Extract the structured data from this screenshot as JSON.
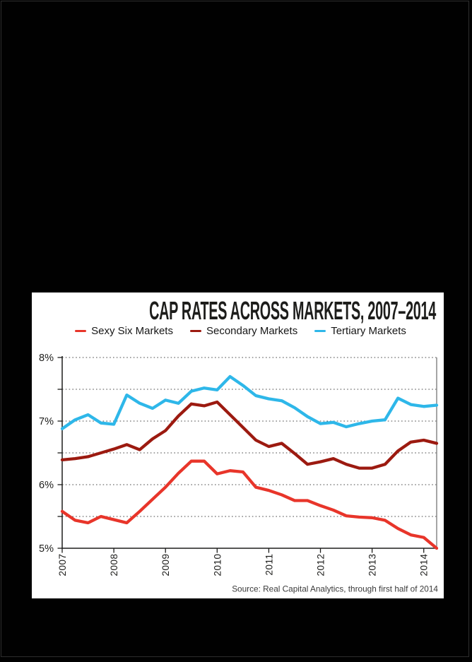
{
  "canvas": {
    "background": "#010101",
    "frame_border_color": "#2d2d2d",
    "card_background": "#ffffff"
  },
  "chart_data": {
    "type": "line",
    "title": "CAP RATES ACROSS MARKETS, 2007–2014",
    "source_note": "Source: Real Capital Analytics, through first half of 2014",
    "legend_position": "top",
    "grid": "dotted horizontal lines every 0.5%",
    "ylim": [
      5,
      8
    ],
    "y_unit": "%",
    "y_gridline_values": [
      8,
      7.5,
      7,
      6.5,
      6,
      5.5
    ],
    "y_tick_values": [
      8,
      7.5,
      7,
      6.5,
      6,
      5.5,
      5
    ],
    "y_label_values": [
      8,
      7,
      6,
      5
    ],
    "y_tick_labels": [
      "8%",
      "7%",
      "6%",
      "5%"
    ],
    "x_tick_labels": [
      "2007",
      "2008",
      "2009",
      "2010",
      "2011",
      "2012",
      "2013",
      "2014"
    ],
    "x": [
      2007,
      2007.25,
      2007.5,
      2007.75,
      2008,
      2008.25,
      2008.5,
      2008.75,
      2009,
      2009.25,
      2009.5,
      2009.75,
      2010,
      2010.25,
      2010.5,
      2010.75,
      2011,
      2011.25,
      2011.5,
      2011.75,
      2012,
      2012.25,
      2012.5,
      2012.75,
      2013,
      2013.25,
      2013.5,
      2013.75,
      2014,
      2014.25
    ],
    "series": [
      {
        "name": "Sexy Six Markets",
        "color": "#e8352a",
        "values": [
          5.58,
          5.44,
          5.4,
          5.5,
          5.45,
          5.4,
          5.58,
          5.77,
          5.96,
          6.18,
          6.37,
          6.37,
          6.17,
          6.22,
          6.2,
          5.96,
          5.91,
          5.84,
          5.75,
          5.75,
          5.67,
          5.6,
          5.51,
          5.49,
          5.48,
          5.44,
          5.31,
          5.21,
          5.17,
          5.0
        ]
      },
      {
        "name": "Secondary Markets",
        "color": "#9c1a10",
        "values": [
          6.39,
          6.41,
          6.44,
          6.5,
          6.56,
          6.63,
          6.55,
          6.72,
          6.85,
          7.08,
          7.27,
          7.24,
          7.3,
          7.1,
          6.9,
          6.7,
          6.6,
          6.65,
          6.49,
          6.32,
          6.36,
          6.41,
          6.32,
          6.26,
          6.26,
          6.32,
          6.53,
          6.67,
          6.7,
          6.65
        ]
      },
      {
        "name": "Tertiary Markets",
        "color": "#2eb7e9",
        "values": [
          6.88,
          7.02,
          7.1,
          6.97,
          6.95,
          7.41,
          7.28,
          7.2,
          7.33,
          7.28,
          7.47,
          7.52,
          7.49,
          7.7,
          7.56,
          7.4,
          7.35,
          7.32,
          7.21,
          7.07,
          6.96,
          6.98,
          6.91,
          6.96,
          7.0,
          7.02,
          7.36,
          7.26,
          7.23,
          7.25
        ]
      }
    ],
    "style": {
      "grid_color": "#4a4a4a",
      "axis_color": "#1d1d1b",
      "right_border_color": "#8f8f8f",
      "label_color": "#1d1d1b",
      "source_color": "#3a3a3a"
    }
  }
}
